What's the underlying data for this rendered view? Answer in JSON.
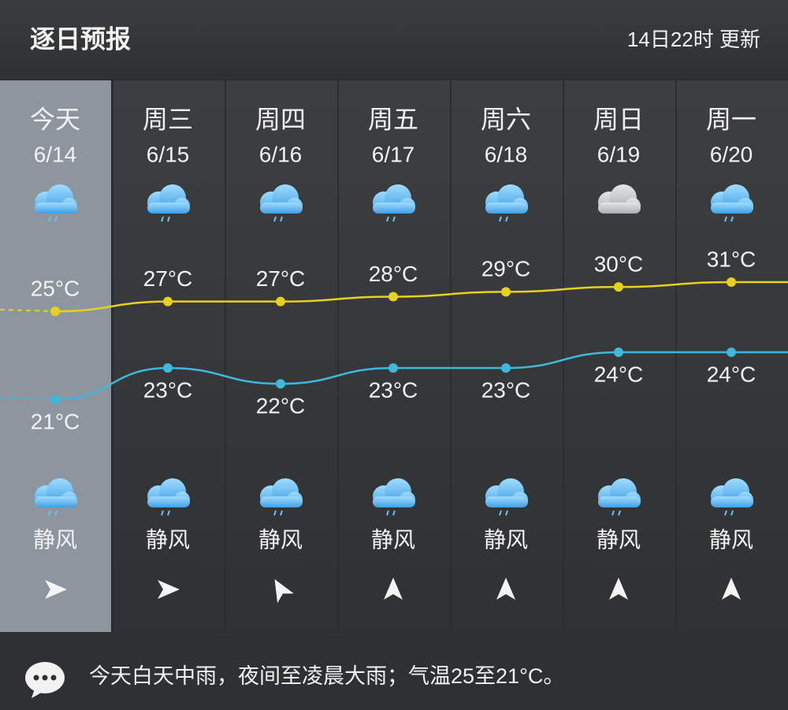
{
  "header": {
    "title": "逐日预报",
    "updated": "14日22时 更新"
  },
  "days": [
    {
      "name": "今天",
      "date": "6/14",
      "wind": "静风"
    },
    {
      "name": "周三",
      "date": "6/15",
      "wind": "静风"
    },
    {
      "name": "周四",
      "date": "6/16",
      "wind": "静风"
    },
    {
      "name": "周五",
      "date": "6/17",
      "wind": "静风"
    },
    {
      "name": "周六",
      "date": "6/18",
      "wind": "静风"
    },
    {
      "name": "周日",
      "date": "6/19",
      "wind": "静风"
    },
    {
      "name": "周一",
      "date": "6/20",
      "wind": "静风"
    }
  ],
  "temperature": {
    "high": {
      "color": "#e6d21e",
      "values": [
        25,
        27,
        27,
        28,
        29,
        30,
        31
      ],
      "value_labels": [
        "25°C",
        "27°C",
        "27°C",
        "28°C",
        "29°C",
        "30°C",
        "31°C"
      ]
    },
    "low": {
      "color": "#3fb8dc",
      "values": [
        21,
        23,
        22,
        23,
        23,
        24,
        24
      ],
      "value_labels": [
        "21°C",
        "23°C",
        "22°C",
        "23°C",
        "23°C",
        "24°C",
        "24°C"
      ]
    }
  },
  "summary": "今天白天中雨，夜间至凌晨大雨；气温25至21°C。"
}
